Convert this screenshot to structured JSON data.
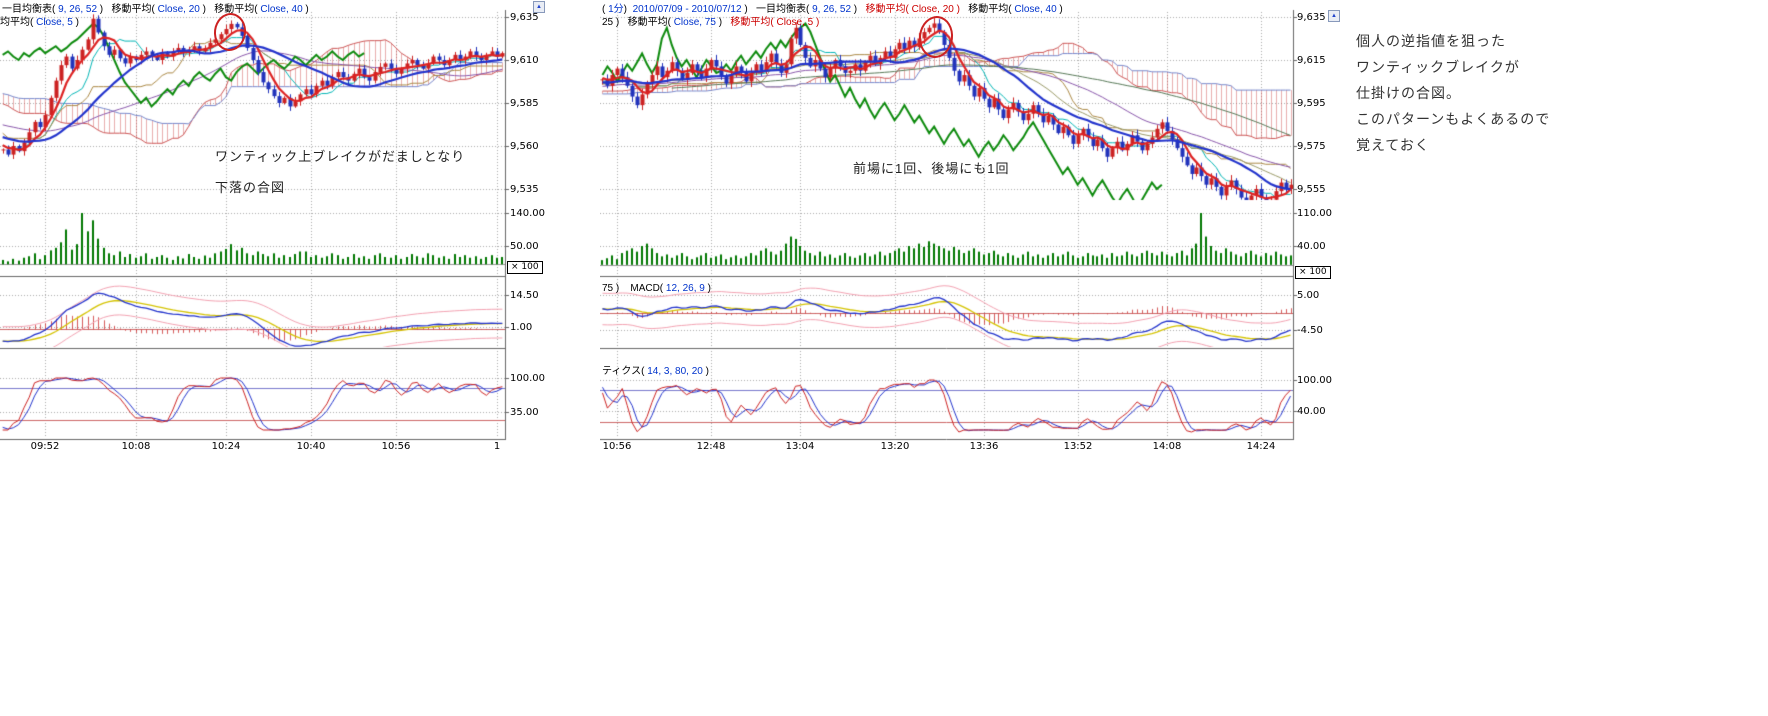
{
  "icons": {
    "scroll_up": "▲"
  },
  "side_note": {
    "lines": [
      "個人の逆指値を狙った",
      "ワンティックブレイクが",
      "仕掛けの合図。",
      "このパターンもよくあるので",
      "覚えておく"
    ]
  },
  "chart_data": [
    {
      "type": "candlestick",
      "panels": [
        "price",
        "volume",
        "macd",
        "stochastic"
      ],
      "headers": [
        [
          {
            "t": "一目均衡表( ",
            "c": "k"
          },
          {
            "t": "9, 26, 52",
            "c": "b"
          },
          {
            "t": " )   ",
            "c": "k"
          },
          {
            "t": "移動平均( ",
            "c": "k"
          },
          {
            "t": "Close, 20",
            "c": "b"
          },
          {
            "t": " )   ",
            "c": "k"
          },
          {
            "t": "移動平均( ",
            "c": "k"
          },
          {
            "t": "Close, 40",
            "c": "b"
          },
          {
            "t": " )",
            "c": "k"
          }
        ],
        [
          {
            "t": "均平均( ",
            "c": "k"
          },
          {
            "t": "Close, 5",
            "c": "b"
          },
          {
            "t": " )",
            "c": "k"
          }
        ]
      ],
      "annotation": {
        "lines": [
          "ワンティック上ブレイクがだましとなり",
          "下落の合図"
        ]
      },
      "price_axis": {
        "ticks": [
          {
            "label": "9,635",
            "value": 9635
          },
          {
            "label": "9,610",
            "value": 9610
          },
          {
            "label": "9,585",
            "value": 9585
          },
          {
            "label": "9,560",
            "value": 9560
          },
          {
            "label": "9,535",
            "value": 9535
          }
        ]
      },
      "volume_axis": {
        "multiplier": "× 100",
        "ticks": [
          {
            "label": "140.00",
            "value": 140
          },
          {
            "label": "50.00",
            "value": 50
          }
        ]
      },
      "macd_axis": {
        "ticks": [
          {
            "label": "14.50",
            "value": 14.5
          },
          {
            "label": "1.00",
            "value": 1.0
          }
        ]
      },
      "stoch_axis": {
        "ref_high": 80,
        "ref_low": 20,
        "ticks": [
          {
            "label": "100.00",
            "value": 100
          },
          {
            "label": "35.00",
            "value": 35
          }
        ]
      },
      "time_ticks": [
        {
          "label": "09:52",
          "index": 8
        },
        {
          "label": "10:08",
          "index": 25
        },
        {
          "label": "10:24",
          "index": 42
        },
        {
          "label": "10:40",
          "index": 58
        },
        {
          "label": "10:56",
          "index": 74
        },
        {
          "label": "1",
          "index": 93
        }
      ],
      "close": [
        9558,
        9555,
        9560,
        9557,
        9562,
        9568,
        9574,
        9571,
        9578,
        9588,
        9598,
        9607,
        9612,
        9605,
        9610,
        9616,
        9622,
        9634,
        9626,
        9618,
        9613,
        9616,
        9611,
        9608,
        9612,
        9610,
        9613,
        9615,
        9612,
        9610,
        9614,
        9612,
        9615,
        9617,
        9614,
        9616,
        9618,
        9615,
        9617,
        9620,
        9622,
        9625,
        9628,
        9631,
        9629,
        9624,
        9617,
        9610,
        9603,
        9597,
        9593,
        9589,
        9585,
        9588,
        9583,
        9586,
        9590,
        9593,
        9590,
        9595,
        9598,
        9595,
        9600,
        9603,
        9600,
        9598,
        9602,
        9605,
        9600,
        9598,
        9603,
        9606,
        9608,
        9605,
        9602,
        9605,
        9608,
        9610,
        9607,
        9605,
        9608,
        9612,
        9610,
        9607,
        9610,
        9613,
        9610,
        9612,
        9615,
        9612,
        9610,
        9613,
        9615,
        9612,
        9614
      ],
      "volume": [
        12,
        8,
        15,
        10,
        18,
        22,
        30,
        14,
        25,
        38,
        45,
        60,
        95,
        40,
        55,
        140,
        90,
        120,
        70,
        45,
        30,
        25,
        35,
        20,
        28,
        18,
        22,
        30,
        15,
        20,
        25,
        18,
        12,
        22,
        16,
        28,
        20,
        15,
        24,
        18,
        30,
        35,
        42,
        55,
        38,
        45,
        30,
        25,
        35,
        28,
        22,
        30,
        18,
        25,
        20,
        28,
        35,
        35,
        20,
        25,
        18,
        22,
        30,
        25,
        15,
        20,
        28,
        18,
        22,
        15,
        25,
        30,
        20,
        18,
        25,
        15,
        20,
        28,
        22,
        18,
        30,
        25,
        18,
        22,
        15,
        28,
        20,
        25,
        18,
        22,
        15,
        20,
        25,
        18,
        20
      ]
    },
    {
      "type": "candlestick",
      "panels": [
        "price",
        "volume",
        "macd",
        "stochastic"
      ],
      "headers": [
        [
          {
            "t": "( ",
            "c": "k"
          },
          {
            "t": "1分",
            "c": "b"
          },
          {
            "t": ")  ",
            "c": "k"
          },
          {
            "t": "2010/07/09 - 2010/07/12",
            "c": "b"
          },
          {
            "t": " )   ",
            "c": "k"
          },
          {
            "t": "一目均衡表( ",
            "c": "k"
          },
          {
            "t": "9, 26, 52",
            "c": "b"
          },
          {
            "t": " )   ",
            "c": "k"
          },
          {
            "t": "移動平均( Close, 20 )",
            "c": "r"
          },
          {
            "t": "   ",
            "c": "k"
          },
          {
            "t": "移動平均( ",
            "c": "k"
          },
          {
            "t": "Close, 40",
            "c": "b"
          },
          {
            "t": " )",
            "c": "k"
          }
        ],
        [
          {
            "t": "25 )   ",
            "c": "k"
          },
          {
            "t": "移動平均( ",
            "c": "k"
          },
          {
            "t": "Close, 75",
            "c": "b"
          },
          {
            "t": " )   ",
            "c": "k"
          },
          {
            "t": "移動平均( Close, 5 )",
            "c": "r"
          }
        ]
      ],
      "macd_header": [
        {
          "t": "75 )    ",
          "c": "k"
        },
        {
          "t": "MACD( ",
          "c": "k"
        },
        {
          "t": "12, 26, 9",
          "c": "b"
        },
        {
          "t": " )",
          "c": "k"
        }
      ],
      "stoch_header": [
        {
          "t": "ティクス( ",
          "c": "k"
        },
        {
          "t": "14, 3, 80, 20",
          "c": "b"
        },
        {
          "t": " )",
          "c": "k"
        }
      ],
      "annotation": {
        "lines": [
          "前場に1回、後場にも1回"
        ]
      },
      "price_axis": {
        "ticks": [
          {
            "label": "9,635",
            "value": 9635
          },
          {
            "label": "9,615",
            "value": 9615
          },
          {
            "label": "9,595",
            "value": 9595
          },
          {
            "label": "9,575",
            "value": 9575
          },
          {
            "label": "9,555",
            "value": 9555
          }
        ]
      },
      "volume_axis": {
        "multiplier": "× 100",
        "ticks": [
          {
            "label": "110.00",
            "value": 110
          },
          {
            "label": "40.00",
            "value": 40
          }
        ]
      },
      "macd_axis": {
        "ticks": [
          {
            "label": "5.00",
            "value": 5
          },
          {
            "label": "-4.50",
            "value": -4.5
          }
        ]
      },
      "stoch_axis": {
        "ref_high": 80,
        "ref_low": 20,
        "ticks": [
          {
            "label": "100.00",
            "value": 100
          },
          {
            "label": "40.00",
            "value": 40
          }
        ]
      },
      "time_ticks": [
        {
          "label": "10:56",
          "index": 3
        },
        {
          "label": "12:48",
          "index": 22
        },
        {
          "label": "13:04",
          "index": 40
        },
        {
          "label": "13:20",
          "index": 59
        },
        {
          "label": "13:36",
          "index": 77
        },
        {
          "label": "13:52",
          "index": 96
        },
        {
          "label": "14:08",
          "index": 114
        },
        {
          "label": "14:24",
          "index": 133
        }
      ],
      "close": [
        9606,
        9603,
        9608,
        9611,
        9607,
        9603,
        9598,
        9594,
        9599,
        9604,
        9608,
        9612,
        9607,
        9610,
        9614,
        9610,
        9606,
        9609,
        9613,
        9610,
        9607,
        9611,
        9615,
        9612,
        9608,
        9604,
        9608,
        9612,
        9609,
        9605,
        9609,
        9613,
        9610,
        9614,
        9618,
        9613,
        9609,
        9613,
        9625,
        9630,
        9622,
        9616,
        9612,
        9615,
        9611,
        9607,
        9611,
        9615,
        9612,
        9609,
        9610,
        9613,
        9610,
        9614,
        9617,
        9613,
        9616,
        9619,
        9616,
        9620,
        9623,
        9620,
        9624,
        9621,
        9625,
        9628,
        9630,
        9632,
        9628,
        9622,
        9616,
        9610,
        9605,
        9608,
        9603,
        9598,
        9602,
        9597,
        9593,
        9597,
        9592,
        9588,
        9592,
        9595,
        9591,
        9587,
        9590,
        9594,
        9590,
        9586,
        9589,
        9585,
        9581,
        9584,
        9580,
        9576,
        9580,
        9583,
        9579,
        9575,
        9578,
        9574,
        9570,
        9574,
        9577,
        9573,
        9576,
        9580,
        9577,
        9573,
        9576,
        9579,
        9583,
        9586,
        9582,
        9578,
        9574,
        9570,
        9566,
        9562,
        9565,
        9561,
        9557,
        9560,
        9556,
        9552,
        9556,
        9559,
        9555,
        9551,
        9548,
        9552,
        9555,
        9551,
        9547,
        9550,
        9554,
        9558,
        9555,
        9557
      ],
      "volume": [
        10,
        14,
        20,
        12,
        25,
        30,
        35,
        28,
        40,
        45,
        35,
        25,
        18,
        22,
        15,
        20,
        25,
        18,
        12,
        16,
        20,
        25,
        15,
        18,
        22,
        12,
        16,
        20,
        14,
        18,
        25,
        20,
        30,
        35,
        28,
        22,
        30,
        45,
        60,
        55,
        40,
        30,
        25,
        20,
        28,
        18,
        22,
        15,
        20,
        25,
        18,
        15,
        20,
        25,
        18,
        22,
        28,
        20,
        25,
        30,
        35,
        28,
        40,
        35,
        45,
        38,
        50,
        45,
        40,
        35,
        30,
        38,
        32,
        25,
        30,
        35,
        28,
        22,
        25,
        30,
        22,
        18,
        25,
        20,
        15,
        22,
        28,
        18,
        22,
        15,
        20,
        25,
        18,
        22,
        28,
        20,
        15,
        18,
        25,
        20,
        18,
        22,
        15,
        25,
        18,
        20,
        28,
        22,
        18,
        25,
        30,
        25,
        20,
        28,
        22,
        18,
        25,
        30,
        20,
        35,
        45,
        110,
        60,
        40,
        30,
        25,
        35,
        28,
        22,
        18,
        25,
        30,
        22,
        18,
        25,
        20,
        28,
        22,
        18,
        20
      ]
    }
  ]
}
